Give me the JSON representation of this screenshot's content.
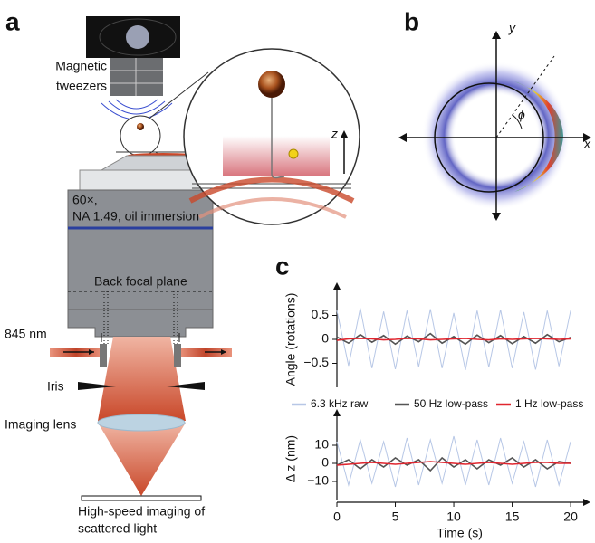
{
  "panel_labels": [
    "a",
    "b",
    "c"
  ],
  "diagram": {
    "magnet_label": [
      "Magnetic",
      "tweezers"
    ],
    "z_label": "z",
    "objective_label": [
      "60×,",
      "NA 1.49, oil immersion"
    ],
    "back_focal_plane": "Back focal plane",
    "wavelength": "845 nm",
    "iris": "Iris",
    "imaging_lens": "Imaging lens",
    "camera_label": [
      "High-speed imaging of",
      "scattered light"
    ]
  },
  "polar_plot": {
    "y_label": "y",
    "x_label": "x",
    "angle_label": "ϕ"
  },
  "chart_data": [
    {
      "type": "line",
      "ylabel": "Angle (rotations)",
      "x": [
        0,
        1,
        2,
        3,
        4,
        5,
        6,
        7,
        8,
        9,
        10,
        11,
        12,
        13,
        14,
        15,
        16,
        17,
        18,
        19,
        20
      ],
      "xlim": [
        0,
        21
      ],
      "ylim": [
        -1,
        1
      ],
      "yticks": [
        0.5,
        0,
        {
          "value": -0.5,
          "label": "−0.5"
        }
      ],
      "series": [
        {
          "name": "6.3 kHz raw",
          "color": "#b7c7e6",
          "values": [
            0.6,
            -0.55,
            0.65,
            -0.6,
            0.58,
            -0.62,
            0.6,
            -0.57,
            0.63,
            -0.6,
            0.55,
            -0.64,
            0.6,
            -0.58,
            0.62,
            -0.6,
            0.57,
            -0.63,
            0.6,
            -0.56,
            0.6
          ]
        },
        {
          "name": "50 Hz low-pass",
          "color": "#555555",
          "values": [
            0.05,
            -0.08,
            0.1,
            -0.06,
            0.08,
            -0.1,
            0.07,
            -0.05,
            0.12,
            -0.08,
            0.06,
            -0.1,
            0.09,
            -0.07,
            0.08,
            -0.09,
            0.06,
            -0.08,
            0.1,
            -0.05,
            0.04
          ]
        },
        {
          "name": "1 Hz low-pass",
          "color": "#e0262f",
          "values": [
            -0.02,
            0.01,
            0.02,
            0.01,
            -0.01,
            0,
            0.02,
            0.01,
            -0.01,
            0,
            0.01,
            0.02,
            0,
            -0.01,
            0.01,
            0,
            0.01,
            0.02,
            0.01,
            0,
            0.01
          ]
        }
      ]
    },
    {
      "type": "line",
      "ylabel": "Δ z (nm)",
      "xlabel": "Time (s)",
      "x": [
        0,
        1,
        2,
        3,
        4,
        5,
        6,
        7,
        8,
        9,
        10,
        11,
        12,
        13,
        14,
        15,
        16,
        17,
        18,
        19,
        20
      ],
      "xlim": [
        0,
        21
      ],
      "xticks": [
        0,
        5,
        10,
        15,
        20
      ],
      "ylim": [
        -20,
        25
      ],
      "yticks": [
        10,
        0,
        {
          "value": -10,
          "label": "−10"
        }
      ],
      "series": [
        {
          "color": "#b7c7e6",
          "values": [
            12,
            -12,
            13,
            -11,
            12,
            -13,
            14,
            -12,
            13,
            -11,
            15,
            -12,
            13,
            -12,
            14,
            -11,
            12,
            -13,
            13,
            -12,
            12
          ]
        },
        {
          "color": "#555555",
          "values": [
            -1,
            2,
            -3,
            2,
            -2,
            3,
            -1,
            2,
            -4,
            3,
            -2,
            2,
            -3,
            2,
            -1,
            3,
            -2,
            2,
            -3,
            1,
            0
          ]
        },
        {
          "color": "#e0262f",
          "values": [
            -1,
            -0.5,
            0,
            0.5,
            0,
            -0.5,
            0,
            0.5,
            1,
            0.5,
            0,
            -0.5,
            0,
            0.5,
            0,
            -0.5,
            0,
            0.5,
            0.5,
            0,
            0
          ]
        }
      ]
    }
  ]
}
